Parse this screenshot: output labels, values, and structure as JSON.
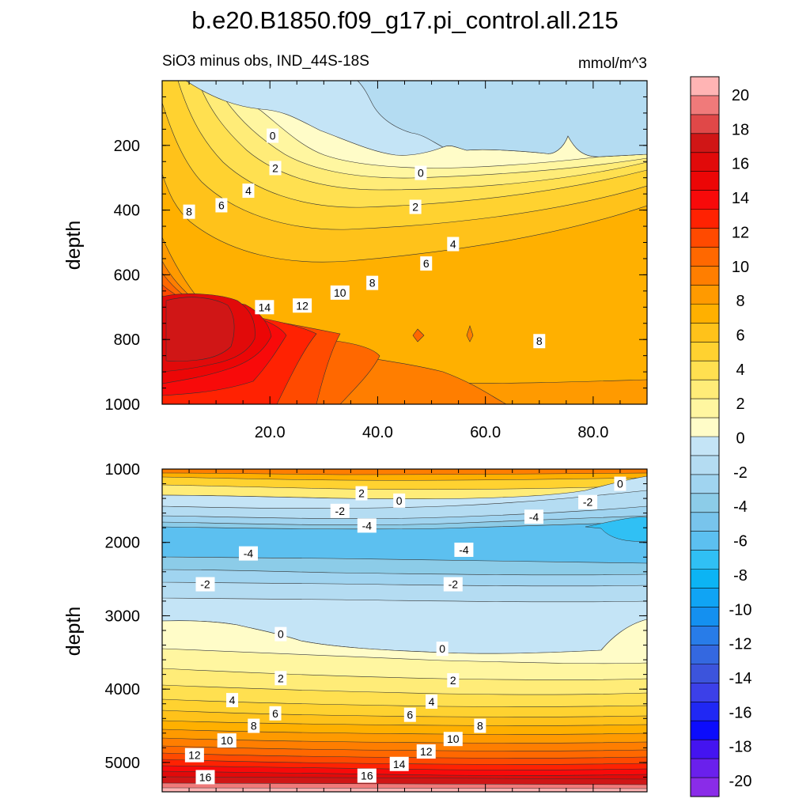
{
  "title": "b.e20.B1850.f09_g17.pi_control.all.215",
  "colorbar": {
    "tick_labels": [
      "20",
      "18",
      "16",
      "14",
      "12",
      "10",
      "8",
      "6",
      "4",
      "2",
      "0",
      "-2",
      "-4",
      "-6",
      "-8",
      "-10",
      "-12",
      "-14",
      "-16",
      "-18",
      "-20"
    ],
    "colors": [
      "#ffb4b4",
      "#f07a7a",
      "#e04848",
      "#d01616",
      "#e10a0a",
      "#ec0606",
      "#f80a0a",
      "#ff2202",
      "#ff4a00",
      "#ff6800",
      "#ff7e00",
      "#ff9a00",
      "#ffb000",
      "#ffc21a",
      "#ffd230",
      "#ffe050",
      "#ffec78",
      "#fff6a0",
      "#fffcc8",
      "#c4e4f6",
      "#b4dcf2",
      "#a0d4f0",
      "#8ccce8",
      "#78c4ec",
      "#5cc0f0",
      "#30c0f4",
      "#0cb4f4",
      "#10a4f4",
      "#1490f0",
      "#287ce8",
      "#3468e0",
      "#3c54dc",
      "#3c40e8",
      "#2028f4",
      "#0c0cfc",
      "#4414f0",
      "#6a20ec",
      "#8a2ce8"
    ],
    "units": "mmol/m^3"
  },
  "chart_data": [
    {
      "type": "contour",
      "panel": "top",
      "subtitle_left": "SiO3 minus obs, IND_44S-18S",
      "subtitle_right": "mmol/m^3",
      "ylabel": "depth",
      "xlabel": "",
      "xlim": [
        0,
        90
      ],
      "ylim": [
        0,
        1000
      ],
      "y_inverted": true,
      "xticks": [
        "20.0",
        "40.0",
        "60.0",
        "80.0"
      ],
      "yticks": [
        "200",
        "400",
        "600",
        "800",
        "1000"
      ],
      "contour_labels": [
        {
          "text": "0",
          "x": 20.5,
          "y": 170
        },
        {
          "text": "0",
          "x": 48,
          "y": 285
        },
        {
          "text": "2",
          "x": 21,
          "y": 270
        },
        {
          "text": "2",
          "x": 47,
          "y": 390
        },
        {
          "text": "4",
          "x": 16,
          "y": 340
        },
        {
          "text": "4",
          "x": 54,
          "y": 505
        },
        {
          "text": "6",
          "x": 11,
          "y": 385
        },
        {
          "text": "6",
          "x": 49,
          "y": 565
        },
        {
          "text": "8",
          "x": 5,
          "y": 405
        },
        {
          "text": "8",
          "x": 39,
          "y": 625
        },
        {
          "text": "8",
          "x": 70,
          "y": 805
        },
        {
          "text": "10",
          "x": 33,
          "y": 655
        },
        {
          "text": "12",
          "x": 26,
          "y": 695
        },
        {
          "text": "14",
          "x": 19,
          "y": 700
        }
      ]
    },
    {
      "type": "contour",
      "panel": "bottom",
      "ylabel": "depth",
      "xlabel": "",
      "xlim": [
        0,
        90
      ],
      "ylim": [
        1000,
        5400
      ],
      "y_inverted": true,
      "yticks": [
        "1000",
        "2000",
        "3000",
        "4000",
        "5000"
      ],
      "contour_labels": [
        {
          "text": "0",
          "x": 85,
          "y": 1200
        },
        {
          "text": "-2",
          "x": 79,
          "y": 1450
        },
        {
          "text": "-4",
          "x": 69,
          "y": 1650
        },
        {
          "text": "2",
          "x": 37,
          "y": 1330
        },
        {
          "text": "0",
          "x": 44,
          "y": 1430
        },
        {
          "text": "-2",
          "x": 33,
          "y": 1570
        },
        {
          "text": "-4",
          "x": 38,
          "y": 1770
        },
        {
          "text": "-4",
          "x": 16,
          "y": 2150
        },
        {
          "text": "-4",
          "x": 56,
          "y": 2100
        },
        {
          "text": "-2",
          "x": 8,
          "y": 2570
        },
        {
          "text": "-2",
          "x": 54,
          "y": 2570
        },
        {
          "text": "0",
          "x": 22,
          "y": 3250
        },
        {
          "text": "0",
          "x": 52,
          "y": 3450
        },
        {
          "text": "2",
          "x": 22,
          "y": 3850
        },
        {
          "text": "2",
          "x": 54,
          "y": 3880
        },
        {
          "text": "4",
          "x": 13,
          "y": 4150
        },
        {
          "text": "4",
          "x": 50,
          "y": 4170
        },
        {
          "text": "6",
          "x": 21,
          "y": 4330
        },
        {
          "text": "6",
          "x": 46,
          "y": 4350
        },
        {
          "text": "8",
          "x": 17,
          "y": 4500
        },
        {
          "text": "8",
          "x": 59,
          "y": 4500
        },
        {
          "text": "10",
          "x": 12,
          "y": 4700
        },
        {
          "text": "10",
          "x": 54,
          "y": 4680
        },
        {
          "text": "12",
          "x": 6,
          "y": 4900
        },
        {
          "text": "12",
          "x": 49,
          "y": 4850
        },
        {
          "text": "14",
          "x": 44,
          "y": 5020
        },
        {
          "text": "16",
          "x": 8,
          "y": 5200
        },
        {
          "text": "16",
          "x": 38,
          "y": 5180
        }
      ]
    }
  ]
}
